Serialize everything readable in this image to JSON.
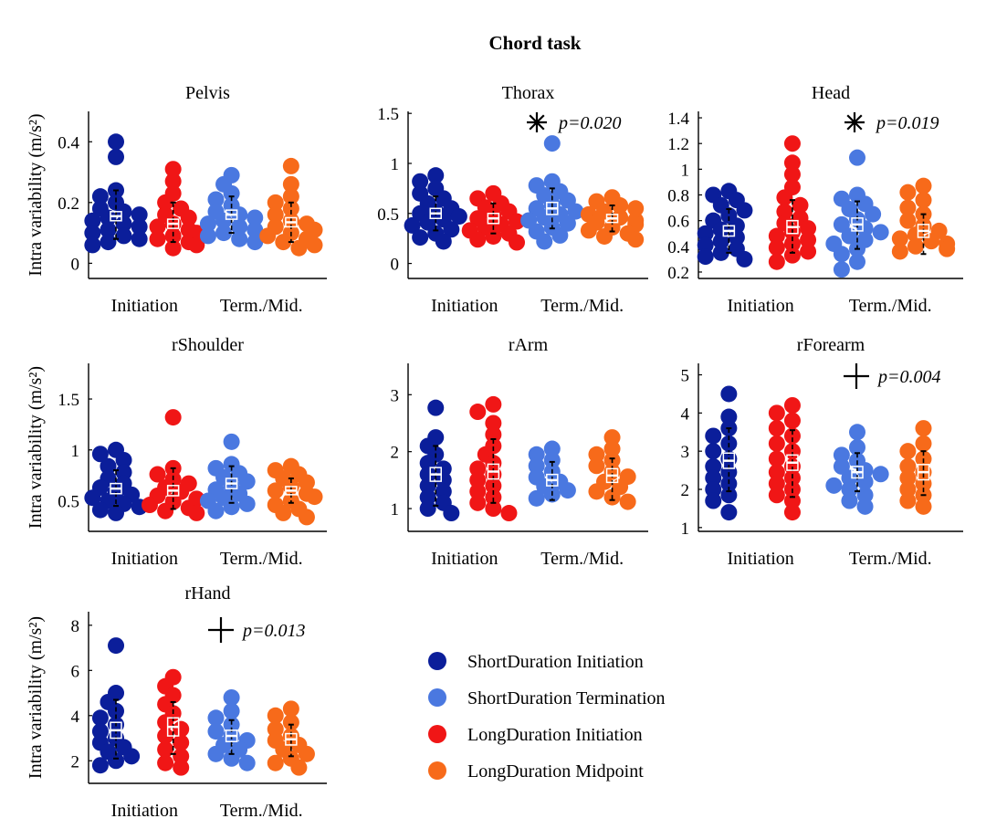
{
  "figure": {
    "title": "Chord task",
    "ylabel": "Intra variability (m/s²)",
    "group_labels": [
      "Initiation",
      "Term./Mid."
    ]
  },
  "legend": [
    {
      "label": "ShortDuration Initiation",
      "color": "#0b1e9a"
    },
    {
      "label": "ShortDuration Termination",
      "color": "#4a78e0"
    },
    {
      "label": "LongDuration Initiation",
      "color": "#f01616"
    },
    {
      "label": "LongDuration Midpoint",
      "color": "#f76a1a"
    }
  ],
  "chart_data": [
    {
      "type": "scatter",
      "title": "Pelvis",
      "ylim": [
        -0.05,
        0.5
      ],
      "yticks": [
        0,
        0.2,
        0.4
      ],
      "ytick_labels": [
        "0",
        "0.2",
        "0.4"
      ],
      "annotation": null,
      "series": [
        {
          "name": "ShortDuration Initiation",
          "mean": 0.155,
          "ci": [
            0.14,
            0.17
          ],
          "sd": [
            0.08,
            0.24
          ],
          "points": [
            0.4,
            0.35,
            0.24,
            0.22,
            0.2,
            0.18,
            0.17,
            0.16,
            0.15,
            0.14,
            0.13,
            0.12,
            0.11,
            0.1,
            0.09,
            0.08,
            0.07,
            0.06
          ]
        },
        {
          "name": "LongDuration Initiation",
          "mean": 0.13,
          "ci": [
            0.115,
            0.145
          ],
          "sd": [
            0.07,
            0.2
          ],
          "points": [
            0.31,
            0.27,
            0.23,
            0.2,
            0.18,
            0.16,
            0.15,
            0.13,
            0.12,
            0.11,
            0.1,
            0.09,
            0.08,
            0.07,
            0.06,
            0.05
          ]
        },
        {
          "name": "ShortDuration Termination",
          "mean": 0.16,
          "ci": [
            0.145,
            0.175
          ],
          "sd": [
            0.1,
            0.22
          ],
          "points": [
            0.29,
            0.26,
            0.23,
            0.21,
            0.19,
            0.17,
            0.16,
            0.15,
            0.14,
            0.13,
            0.12,
            0.11,
            0.1,
            0.09,
            0.08,
            0.07
          ]
        },
        {
          "name": "LongDuration Midpoint",
          "mean": 0.135,
          "ci": [
            0.12,
            0.15
          ],
          "sd": [
            0.07,
            0.2
          ],
          "points": [
            0.32,
            0.26,
            0.22,
            0.2,
            0.18,
            0.16,
            0.14,
            0.13,
            0.12,
            0.11,
            0.1,
            0.09,
            0.08,
            0.07,
            0.06,
            0.05
          ]
        }
      ]
    },
    {
      "type": "scatter",
      "title": "Thorax",
      "ylim": [
        -0.15,
        1.52
      ],
      "yticks": [
        0,
        0.5,
        1,
        1.5
      ],
      "ytick_labels": [
        "0",
        "0.5",
        "1",
        "1.5"
      ],
      "annotation": {
        "symbol": "asterisk",
        "text": "p=0.020"
      },
      "series": [
        {
          "name": "ShortDuration Initiation",
          "mean": 0.5,
          "ci": [
            0.45,
            0.55
          ],
          "sd": [
            0.33,
            0.67
          ],
          "points": [
            0.88,
            0.82,
            0.75,
            0.7,
            0.65,
            0.6,
            0.55,
            0.52,
            0.5,
            0.47,
            0.44,
            0.41,
            0.38,
            0.34,
            0.3,
            0.26,
            0.22
          ]
        },
        {
          "name": "LongDuration Initiation",
          "mean": 0.45,
          "ci": [
            0.4,
            0.5
          ],
          "sd": [
            0.3,
            0.6
          ],
          "points": [
            0.7,
            0.65,
            0.6,
            0.56,
            0.52,
            0.48,
            0.45,
            0.42,
            0.39,
            0.36,
            0.33,
            0.3,
            0.27,
            0.24,
            0.21
          ]
        },
        {
          "name": "ShortDuration Termination",
          "mean": 0.55,
          "ci": [
            0.49,
            0.61
          ],
          "sd": [
            0.35,
            0.75
          ],
          "points": [
            1.2,
            0.82,
            0.78,
            0.72,
            0.68,
            0.63,
            0.59,
            0.55,
            0.52,
            0.49,
            0.46,
            0.43,
            0.4,
            0.36,
            0.32,
            0.28,
            0.22
          ]
        },
        {
          "name": "LongDuration Midpoint",
          "mean": 0.45,
          "ci": [
            0.41,
            0.49
          ],
          "sd": [
            0.32,
            0.58
          ],
          "points": [
            0.66,
            0.62,
            0.58,
            0.55,
            0.52,
            0.49,
            0.46,
            0.43,
            0.41,
            0.39,
            0.36,
            0.33,
            0.3,
            0.27,
            0.24
          ]
        }
      ]
    },
    {
      "type": "scatter",
      "title": "Head",
      "ylim": [
        0.15,
        1.45
      ],
      "yticks": [
        0.2,
        0.4,
        0.6,
        0.8,
        1,
        1.2,
        1.4
      ],
      "ytick_labels": [
        "0.2",
        "0.4",
        "0.6",
        "0.8",
        "1",
        "1.2",
        "1.4"
      ],
      "annotation": {
        "symbol": "asterisk",
        "text": "p=0.019"
      },
      "series": [
        {
          "name": "ShortDuration Initiation",
          "mean": 0.52,
          "ci": [
            0.48,
            0.56
          ],
          "sd": [
            0.35,
            0.69
          ],
          "points": [
            0.83,
            0.8,
            0.76,
            0.72,
            0.68,
            0.64,
            0.6,
            0.56,
            0.53,
            0.5,
            0.47,
            0.44,
            0.41,
            0.38,
            0.35,
            0.32,
            0.3
          ]
        },
        {
          "name": "LongDuration Initiation",
          "mean": 0.55,
          "ci": [
            0.5,
            0.6
          ],
          "sd": [
            0.35,
            0.76
          ],
          "points": [
            1.2,
            1.05,
            0.96,
            0.86,
            0.78,
            0.72,
            0.67,
            0.62,
            0.58,
            0.54,
            0.51,
            0.48,
            0.45,
            0.42,
            0.39,
            0.36,
            0.33,
            0.28
          ]
        },
        {
          "name": "ShortDuration Termination",
          "mean": 0.57,
          "ci": [
            0.52,
            0.62
          ],
          "sd": [
            0.38,
            0.75
          ],
          "points": [
            1.09,
            0.8,
            0.77,
            0.73,
            0.69,
            0.65,
            0.61,
            0.57,
            0.54,
            0.51,
            0.48,
            0.45,
            0.42,
            0.38,
            0.34,
            0.28,
            0.22
          ]
        },
        {
          "name": "LongDuration Midpoint",
          "mean": 0.52,
          "ci": [
            0.47,
            0.57
          ],
          "sd": [
            0.34,
            0.65
          ],
          "points": [
            0.87,
            0.82,
            0.76,
            0.7,
            0.65,
            0.6,
            0.56,
            0.52,
            0.49,
            0.46,
            0.44,
            0.42,
            0.4,
            0.38,
            0.36
          ]
        }
      ]
    },
    {
      "type": "scatter",
      "title": "rShoulder",
      "ylim": [
        0.2,
        1.85
      ],
      "yticks": [
        0.5,
        1,
        1.5
      ],
      "ytick_labels": [
        "0.5",
        "1",
        "1.5"
      ],
      "annotation": null,
      "series": [
        {
          "name": "ShortDuration Initiation",
          "mean": 0.62,
          "ci": [
            0.57,
            0.67
          ],
          "sd": [
            0.45,
            0.8
          ],
          "points": [
            1.0,
            0.96,
            0.9,
            0.84,
            0.78,
            0.72,
            0.67,
            0.63,
            0.59,
            0.56,
            0.53,
            0.5,
            0.47,
            0.44,
            0.41,
            0.38
          ]
        },
        {
          "name": "LongDuration Initiation",
          "mean": 0.6,
          "ci": [
            0.55,
            0.65
          ],
          "sd": [
            0.42,
            0.82
          ],
          "points": [
            1.32,
            0.82,
            0.76,
            0.71,
            0.67,
            0.63,
            0.59,
            0.55,
            0.52,
            0.49,
            0.46,
            0.43,
            0.4,
            0.38
          ]
        },
        {
          "name": "ShortDuration Termination",
          "mean": 0.67,
          "ci": [
            0.62,
            0.72
          ],
          "sd": [
            0.48,
            0.84
          ],
          "points": [
            1.08,
            0.86,
            0.82,
            0.77,
            0.73,
            0.69,
            0.65,
            0.61,
            0.57,
            0.53,
            0.5,
            0.47,
            0.44,
            0.4
          ]
        },
        {
          "name": "LongDuration Midpoint",
          "mean": 0.6,
          "ci": [
            0.56,
            0.64
          ],
          "sd": [
            0.48,
            0.72
          ],
          "points": [
            0.84,
            0.8,
            0.76,
            0.72,
            0.68,
            0.64,
            0.6,
            0.57,
            0.54,
            0.5,
            0.46,
            0.42,
            0.38,
            0.34
          ]
        }
      ]
    },
    {
      "type": "scatter",
      "title": "rArm",
      "ylim": [
        0.6,
        3.55
      ],
      "yticks": [
        1,
        2,
        3
      ],
      "ytick_labels": [
        "1",
        "2",
        "3"
      ],
      "annotation": null,
      "series": [
        {
          "name": "ShortDuration Initiation",
          "mean": 1.6,
          "ci": [
            1.48,
            1.72
          ],
          "sd": [
            1.05,
            2.1
          ],
          "points": [
            2.77,
            2.25,
            2.1,
            1.95,
            1.8,
            1.7,
            1.6,
            1.5,
            1.4,
            1.3,
            1.2,
            1.1,
            1.0,
            0.92
          ]
        },
        {
          "name": "LongDuration Initiation",
          "mean": 1.65,
          "ci": [
            1.52,
            1.78
          ],
          "sd": [
            1.1,
            2.22
          ],
          "points": [
            2.83,
            2.7,
            2.5,
            2.3,
            2.1,
            1.95,
            1.8,
            1.7,
            1.6,
            1.5,
            1.4,
            1.3,
            1.2,
            1.1,
            1.0,
            0.92
          ]
        },
        {
          "name": "ShortDuration Termination",
          "mean": 1.5,
          "ci": [
            1.4,
            1.6
          ],
          "sd": [
            1.15,
            1.82
          ],
          "points": [
            2.05,
            1.95,
            1.85,
            1.75,
            1.65,
            1.55,
            1.47,
            1.39,
            1.32,
            1.25,
            1.18
          ]
        },
        {
          "name": "LongDuration Midpoint",
          "mean": 1.58,
          "ci": [
            1.46,
            1.7
          ],
          "sd": [
            1.15,
            1.88
          ],
          "points": [
            2.25,
            2.05,
            1.95,
            1.85,
            1.75,
            1.65,
            1.56,
            1.47,
            1.38,
            1.3,
            1.2,
            1.12
          ]
        }
      ]
    },
    {
      "type": "scatter",
      "title": "rForearm",
      "ylim": [
        0.9,
        5.3
      ],
      "yticks": [
        1,
        2,
        3,
        4,
        5
      ],
      "ytick_labels": [
        "1",
        "2",
        "3",
        "4",
        "5"
      ],
      "annotation": {
        "symbol": "plus",
        "text": "p=0.004"
      },
      "series": [
        {
          "name": "ShortDuration Initiation",
          "mean": 2.75,
          "ci": [
            2.55,
            2.95
          ],
          "sd": [
            1.95,
            3.6
          ],
          "points": [
            4.5,
            3.9,
            3.6,
            3.4,
            3.2,
            3.0,
            2.8,
            2.6,
            2.45,
            2.3,
            2.15,
            2.0,
            1.85,
            1.7,
            1.4
          ]
        },
        {
          "name": "LongDuration Initiation",
          "mean": 2.7,
          "ci": [
            2.5,
            2.9
          ],
          "sd": [
            1.8,
            3.55
          ],
          "points": [
            4.2,
            4.0,
            3.8,
            3.6,
            3.4,
            3.2,
            3.0,
            2.8,
            2.6,
            2.45,
            2.3,
            2.15,
            2.0,
            1.85,
            1.7,
            1.4
          ]
        },
        {
          "name": "ShortDuration Termination",
          "mean": 2.45,
          "ci": [
            2.3,
            2.6
          ],
          "sd": [
            1.95,
            2.95
          ],
          "points": [
            3.5,
            3.1,
            2.9,
            2.75,
            2.6,
            2.5,
            2.4,
            2.3,
            2.2,
            2.1,
            2.0,
            1.85,
            1.7,
            1.55
          ]
        },
        {
          "name": "LongDuration Midpoint",
          "mean": 2.45,
          "ci": [
            2.25,
            2.65
          ],
          "sd": [
            1.85,
            3.0
          ],
          "points": [
            3.6,
            3.2,
            3.0,
            2.8,
            2.6,
            2.45,
            2.3,
            2.15,
            2.0,
            1.85,
            1.7,
            1.55
          ]
        }
      ]
    },
    {
      "type": "scatter",
      "title": "rHand",
      "ylim": [
        1.0,
        8.6
      ],
      "yticks": [
        2,
        4,
        6,
        8
      ],
      "ytick_labels": [
        "2",
        "4",
        "6",
        "8"
      ],
      "annotation": {
        "symbol": "plus",
        "text": "p=0.013"
      },
      "series": [
        {
          "name": "ShortDuration Initiation",
          "mean": 3.35,
          "ci": [
            3.0,
            3.7
          ],
          "sd": [
            2.1,
            4.7
          ],
          "points": [
            7.1,
            5.0,
            4.6,
            4.2,
            3.9,
            3.6,
            3.3,
            3.0,
            2.8,
            2.6,
            2.4,
            2.2,
            2.0,
            1.8
          ]
        },
        {
          "name": "LongDuration Initiation",
          "mean": 3.5,
          "ci": [
            3.1,
            3.9
          ],
          "sd": [
            2.3,
            4.6
          ],
          "points": [
            5.7,
            5.3,
            4.9,
            4.5,
            4.1,
            3.7,
            3.4,
            3.1,
            2.8,
            2.5,
            2.2,
            1.9,
            1.7
          ]
        },
        {
          "name": "ShortDuration Termination",
          "mean": 3.1,
          "ci": [
            2.85,
            3.35
          ],
          "sd": [
            2.3,
            3.8
          ],
          "points": [
            4.8,
            4.2,
            3.9,
            3.6,
            3.3,
            3.1,
            2.9,
            2.7,
            2.5,
            2.3,
            2.1,
            1.9
          ]
        },
        {
          "name": "LongDuration Midpoint",
          "mean": 2.95,
          "ci": [
            2.7,
            3.2
          ],
          "sd": [
            2.2,
            3.6
          ],
          "points": [
            4.3,
            4.0,
            3.7,
            3.4,
            3.1,
            2.9,
            2.7,
            2.5,
            2.3,
            2.1,
            1.9,
            1.7
          ]
        }
      ]
    }
  ]
}
